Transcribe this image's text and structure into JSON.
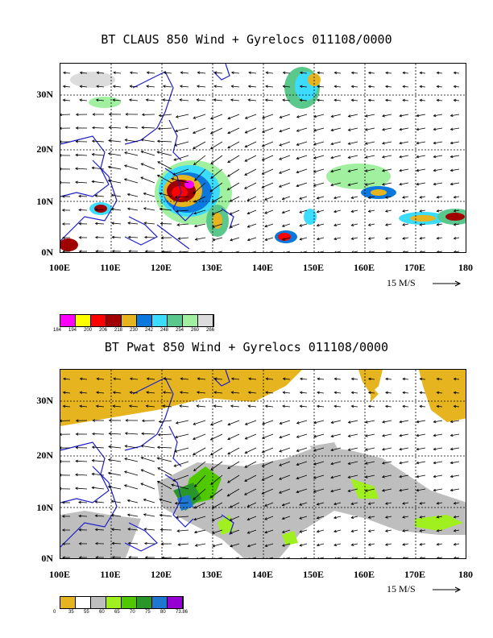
{
  "top": {
    "title": "BT CLAUS 850 Wind + Gyrelocs 011108/0000",
    "y_labels": [
      "30N",
      "20N",
      "10N",
      "0N"
    ],
    "x_labels": [
      "100E",
      "110E",
      "120E",
      "130E",
      "140E",
      "150E",
      "160E",
      "170E",
      "180"
    ],
    "ref_vector": "15 M/S",
    "legend_colors": [
      "#ff00ff",
      "#ffff00",
      "#ff0000",
      "#a00000",
      "#e6b41e",
      "#0a78dc",
      "#3cdcff",
      "#5ac88c",
      "#a0f0a0",
      "#dcdcdc"
    ],
    "legend_ticks": [
      "184",
      "194",
      "200",
      "206",
      "218",
      "230",
      "242",
      "248",
      "254",
      "260",
      "266"
    ]
  },
  "bottom": {
    "title": "BT Pwat 850 Wind + Gyrelocs 011108/0000",
    "y_labels": [
      "30N",
      "20N",
      "10N",
      "0N"
    ],
    "x_labels": [
      "100E",
      "110E",
      "120E",
      "130E",
      "140E",
      "150E",
      "160E",
      "170E",
      "180"
    ],
    "ref_vector": "15 M/S",
    "legend_colors": [
      "#e6b41e",
      "#ffffff",
      "#bebebe",
      "#a0f020",
      "#50c800",
      "#289628",
      "#1e78d2",
      "#9600d2"
    ],
    "legend_ticks": [
      "0",
      "35",
      "55",
      "60",
      "65",
      "70",
      "75",
      "80",
      "73.86"
    ]
  }
}
